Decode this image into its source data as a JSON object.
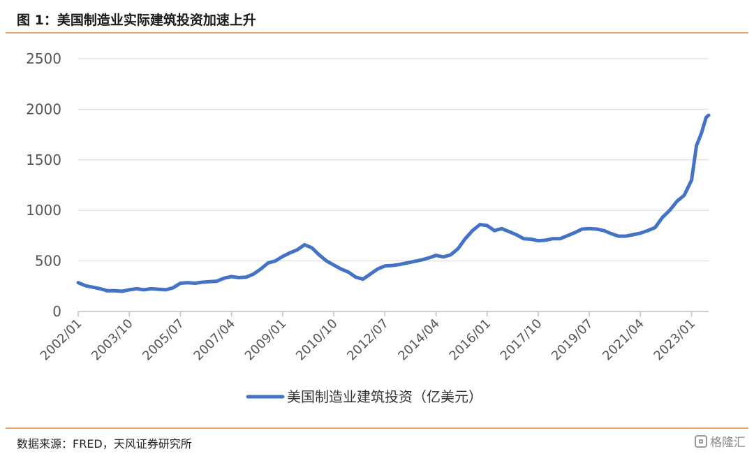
{
  "header": {
    "title": "图 1：美国制造业实际建筑投资加速上升"
  },
  "footer": {
    "source": "数据来源：FRED，天风证券研究所",
    "watermark": "格隆汇"
  },
  "colors": {
    "series": "#4472c4",
    "grid": "#d9d9d9",
    "rule": "#f0a46a"
  },
  "chart_data": {
    "type": "line",
    "title": "",
    "xlabel": "",
    "ylabel": "",
    "ylim": [
      0,
      2500
    ],
    "yticks": [
      0,
      500,
      1000,
      1500,
      2000,
      2500
    ],
    "xticks": [
      "2002/01",
      "2003/10",
      "2005/07",
      "2007/04",
      "2009/01",
      "2010/10",
      "2012/07",
      "2014/04",
      "2016/01",
      "2017/10",
      "2019/07",
      "2021/04",
      "2023/01"
    ],
    "xrange": [
      "2002/01",
      "2023/08"
    ],
    "grid": "horizontal",
    "legend_position": "bottom",
    "series": [
      {
        "name": "美国制造业建筑投资（亿美元）",
        "points": [
          [
            "2002/01",
            285
          ],
          [
            "2002/04",
            255
          ],
          [
            "2002/07",
            240
          ],
          [
            "2002/10",
            225
          ],
          [
            "2003/01",
            205
          ],
          [
            "2003/04",
            205
          ],
          [
            "2003/07",
            200
          ],
          [
            "2003/10",
            215
          ],
          [
            "2004/01",
            225
          ],
          [
            "2004/04",
            215
          ],
          [
            "2004/07",
            225
          ],
          [
            "2004/10",
            220
          ],
          [
            "2005/01",
            215
          ],
          [
            "2005/04",
            235
          ],
          [
            "2005/07",
            280
          ],
          [
            "2005/10",
            285
          ],
          [
            "2006/01",
            280
          ],
          [
            "2006/04",
            290
          ],
          [
            "2006/07",
            295
          ],
          [
            "2006/10",
            300
          ],
          [
            "2007/01",
            330
          ],
          [
            "2007/04",
            345
          ],
          [
            "2007/07",
            335
          ],
          [
            "2007/10",
            340
          ],
          [
            "2008/01",
            370
          ],
          [
            "2008/04",
            420
          ],
          [
            "2008/07",
            480
          ],
          [
            "2008/10",
            500
          ],
          [
            "2009/01",
            545
          ],
          [
            "2009/04",
            580
          ],
          [
            "2009/07",
            610
          ],
          [
            "2009/10",
            660
          ],
          [
            "2010/01",
            630
          ],
          [
            "2010/04",
            560
          ],
          [
            "2010/07",
            500
          ],
          [
            "2010/10",
            460
          ],
          [
            "2011/01",
            420
          ],
          [
            "2011/04",
            390
          ],
          [
            "2011/07",
            340
          ],
          [
            "2011/10",
            320
          ],
          [
            "2012/01",
            370
          ],
          [
            "2012/04",
            420
          ],
          [
            "2012/07",
            450
          ],
          [
            "2012/10",
            455
          ],
          [
            "2013/01",
            465
          ],
          [
            "2013/04",
            480
          ],
          [
            "2013/07",
            495
          ],
          [
            "2013/10",
            510
          ],
          [
            "2014/01",
            530
          ],
          [
            "2014/04",
            555
          ],
          [
            "2014/07",
            540
          ],
          [
            "2014/10",
            560
          ],
          [
            "2015/01",
            620
          ],
          [
            "2015/04",
            720
          ],
          [
            "2015/07",
            800
          ],
          [
            "2015/10",
            860
          ],
          [
            "2016/01",
            850
          ],
          [
            "2016/04",
            800
          ],
          [
            "2016/07",
            820
          ],
          [
            "2016/10",
            790
          ],
          [
            "2017/01",
            760
          ],
          [
            "2017/04",
            720
          ],
          [
            "2017/07",
            715
          ],
          [
            "2017/10",
            700
          ],
          [
            "2018/01",
            705
          ],
          [
            "2018/04",
            720
          ],
          [
            "2018/07",
            720
          ],
          [
            "2018/10",
            750
          ],
          [
            "2019/01",
            780
          ],
          [
            "2019/04",
            815
          ],
          [
            "2019/07",
            820
          ],
          [
            "2019/10",
            815
          ],
          [
            "2020/01",
            800
          ],
          [
            "2020/04",
            770
          ],
          [
            "2020/07",
            745
          ],
          [
            "2020/10",
            745
          ],
          [
            "2021/01",
            760
          ],
          [
            "2021/04",
            775
          ],
          [
            "2021/07",
            800
          ],
          [
            "2021/10",
            830
          ],
          [
            "2022/01",
            930
          ],
          [
            "2022/04",
            1000
          ],
          [
            "2022/07",
            1090
          ],
          [
            "2022/10",
            1150
          ],
          [
            "2023/01",
            1300
          ],
          [
            "2023/03",
            1640
          ],
          [
            "2023/05",
            1760
          ],
          [
            "2023/07",
            1920
          ],
          [
            "2023/08",
            1940
          ]
        ]
      }
    ]
  }
}
